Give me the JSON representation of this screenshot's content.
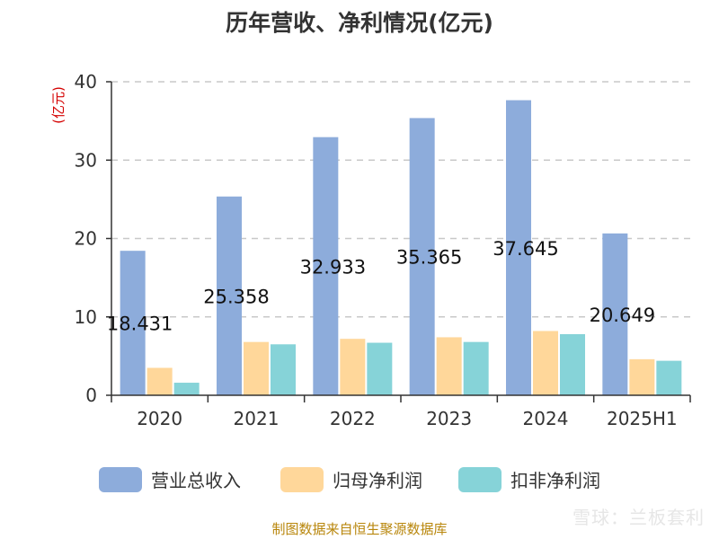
{
  "title": "历年营收、净利情况(亿元)",
  "source_note": "制图数据来自恒生聚源数据库",
  "watermark": "雪球：兰板套利",
  "chart_data": {
    "type": "bar",
    "ylabel": "(亿元)",
    "ylim": [
      0,
      40
    ],
    "yticks": [
      0,
      10,
      20,
      30,
      40
    ],
    "grid": true,
    "legend_position": "bottom",
    "categories": [
      "2020",
      "2021",
      "2022",
      "2023",
      "2024",
      "2025H1"
    ],
    "series": [
      {
        "name": "营业总收入",
        "color": "#8dacdb",
        "values": [
          18.431,
          25.358,
          32.933,
          35.365,
          37.645,
          20.649
        ]
      },
      {
        "name": "归母净利润",
        "color": "#ffd79a",
        "values": [
          3.5,
          6.8,
          7.2,
          7.4,
          8.2,
          4.6
        ]
      },
      {
        "name": "扣非净利润",
        "color": "#86d3d8",
        "values": [
          1.6,
          6.5,
          6.7,
          6.8,
          7.8,
          4.4
        ]
      }
    ],
    "data_labels": [
      "18.431",
      "25.358",
      "32.933",
      "35.365",
      "37.645",
      "20.649"
    ]
  }
}
